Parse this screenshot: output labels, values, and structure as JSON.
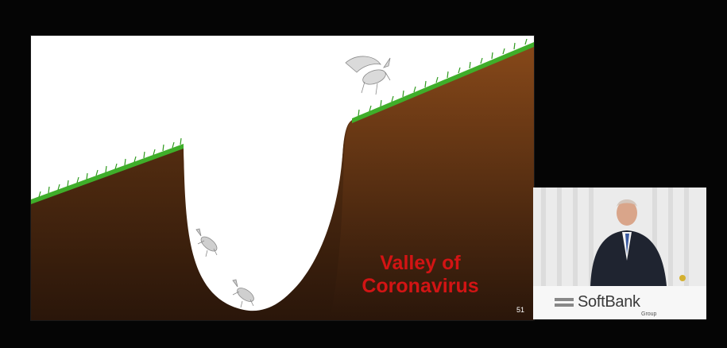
{
  "slide": {
    "title_line1": "Valley of",
    "title_line2": "Coronavirus",
    "page_number": "51",
    "colors": {
      "caption": "#d21414",
      "soil_top": "#7a4519",
      "soil_bottom": "#2a160a",
      "grass": "#3fae2a"
    },
    "illustrations": [
      "unicorn-icon",
      "unicorn-icon",
      "winged-unicorn-icon"
    ]
  },
  "presenter_feed": {
    "logo_text": "SoftBank",
    "logo_subtext": "Group"
  }
}
